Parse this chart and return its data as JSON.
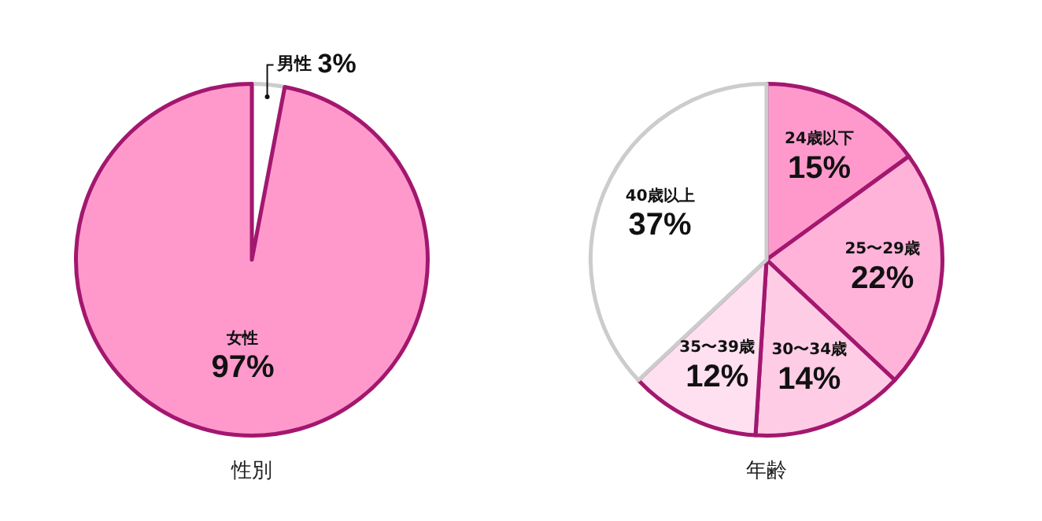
{
  "chart_data": [
    {
      "type": "pie",
      "title": "性別",
      "categories": [
        "男性",
        "女性"
      ],
      "values": [
        3,
        97
      ],
      "colors": [
        "#ffffff",
        "#ff99cc"
      ],
      "value_labels": [
        "3%",
        "97%"
      ]
    },
    {
      "type": "pie",
      "title": "年齢",
      "categories": [
        "24歳以下",
        "25〜29歳",
        "30〜34歳",
        "35〜39歳",
        "40歳以上"
      ],
      "values": [
        15,
        22,
        14,
        12,
        37
      ],
      "colors": [
        "#ff99cc",
        "#ffb3d9",
        "#ffcce6",
        "#ffe0f0",
        "#ffffff"
      ],
      "value_labels": [
        "15%",
        "22%",
        "14%",
        "12%",
        "37%"
      ]
    }
  ]
}
